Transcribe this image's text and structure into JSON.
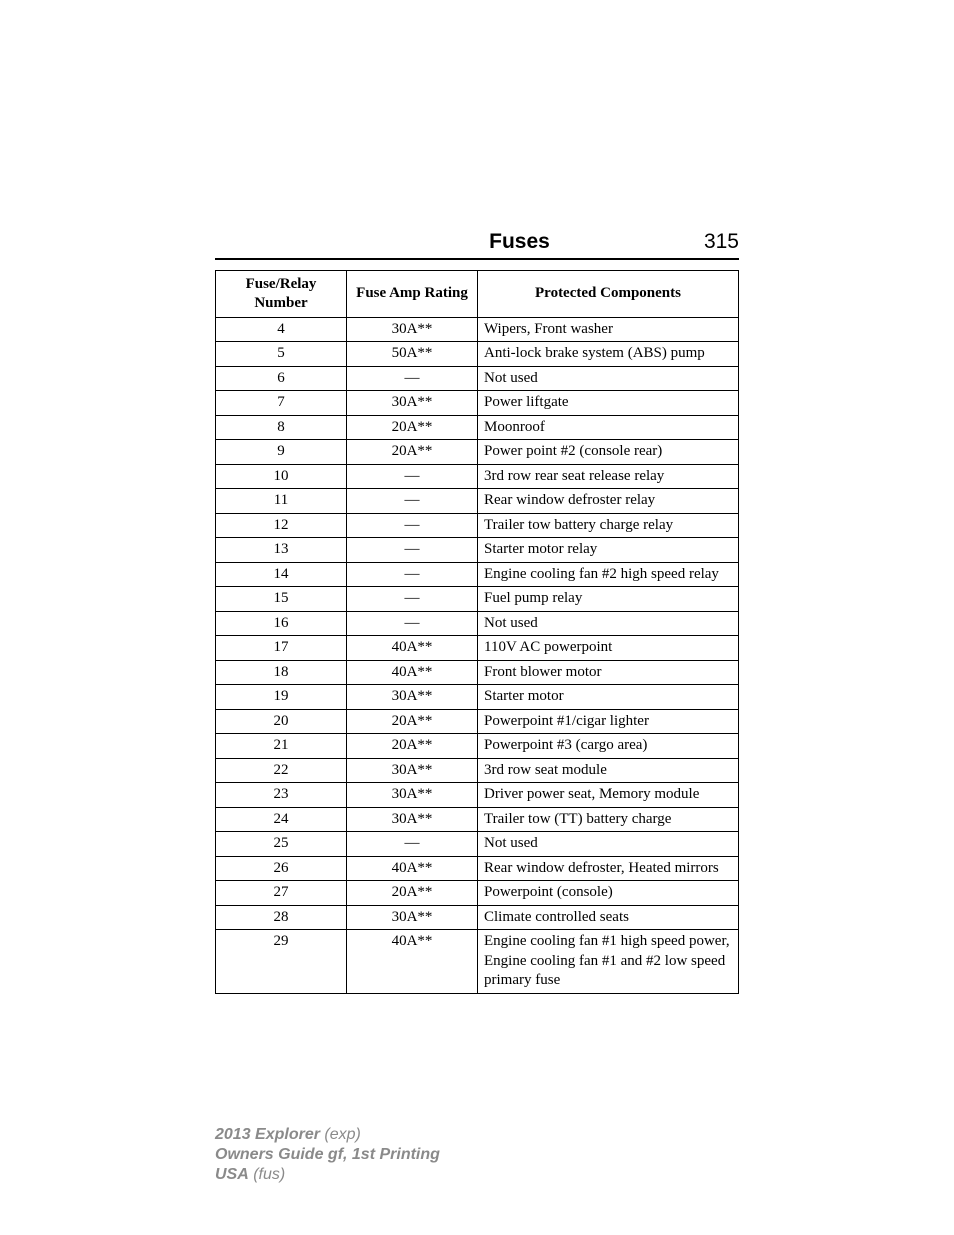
{
  "header": {
    "title": "Fuses",
    "page_number": "315"
  },
  "table": {
    "columns": [
      "Fuse/Relay Number",
      "Fuse Amp Rating",
      "Protected Components"
    ],
    "col_widths": [
      "118px",
      "118px",
      "auto"
    ],
    "rows": [
      [
        "4",
        "30A**",
        "Wipers, Front washer"
      ],
      [
        "5",
        "50A**",
        "Anti-lock brake system (ABS) pump"
      ],
      [
        "6",
        "—",
        "Not used"
      ],
      [
        "7",
        "30A**",
        "Power liftgate"
      ],
      [
        "8",
        "20A**",
        "Moonroof"
      ],
      [
        "9",
        "20A**",
        "Power point #2 (console rear)"
      ],
      [
        "10",
        "—",
        "3rd row rear seat release relay"
      ],
      [
        "11",
        "—",
        "Rear window defroster relay"
      ],
      [
        "12",
        "—",
        "Trailer tow battery charge relay"
      ],
      [
        "13",
        "—",
        "Starter motor relay"
      ],
      [
        "14",
        "—",
        "Engine cooling fan #2 high speed relay"
      ],
      [
        "15",
        "—",
        "Fuel pump relay"
      ],
      [
        "16",
        "—",
        "Not used"
      ],
      [
        "17",
        "40A**",
        "110V AC powerpoint"
      ],
      [
        "18",
        "40A**",
        "Front blower motor"
      ],
      [
        "19",
        "30A**",
        "Starter motor"
      ],
      [
        "20",
        "20A**",
        "Powerpoint #1/cigar lighter"
      ],
      [
        "21",
        "20A**",
        "Powerpoint #3 (cargo area)"
      ],
      [
        "22",
        "30A**",
        "3rd row seat module"
      ],
      [
        "23",
        "30A**",
        "Driver power seat, Memory module"
      ],
      [
        "24",
        "30A**",
        "Trailer tow (TT) battery charge"
      ],
      [
        "25",
        "—",
        "Not used"
      ],
      [
        "26",
        "40A**",
        "Rear window defroster, Heated mirrors"
      ],
      [
        "27",
        "20A**",
        "Powerpoint (console)"
      ],
      [
        "28",
        "30A**",
        "Climate controlled seats"
      ],
      [
        "29",
        "40A**",
        "Engine cooling fan #1 high speed power, Engine cooling fan #1 and #2 low speed primary fuse"
      ]
    ]
  },
  "footer": {
    "line1_bold": "2013 Explorer",
    "line1_paren": " (exp)",
    "line2": "Owners Guide gf, 1st Printing",
    "line3_bold": "USA",
    "line3_paren": " (fus)"
  }
}
